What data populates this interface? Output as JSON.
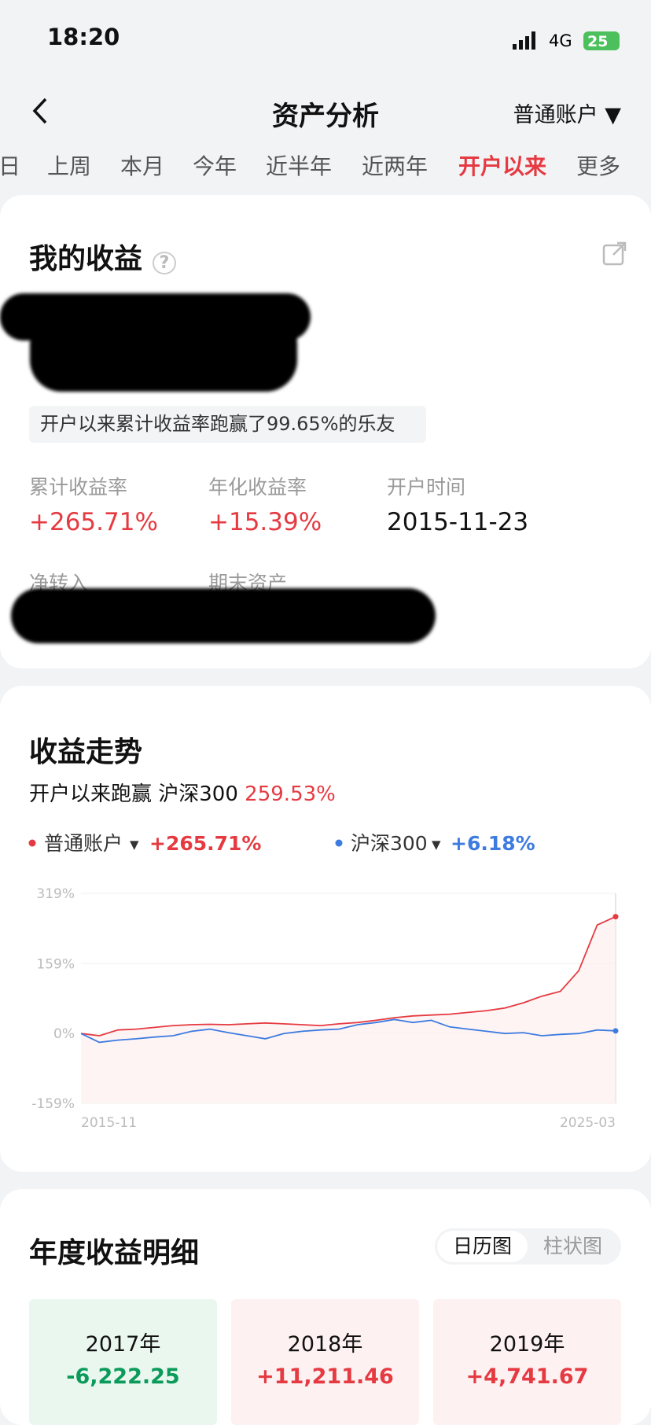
{
  "status": {
    "time": "18:20",
    "network": "4G",
    "battery": "25"
  },
  "header": {
    "title": "资产分析",
    "account": "普通账户"
  },
  "tabs": {
    "items": [
      "日",
      "上周",
      "本月",
      "今年",
      "近半年",
      "近两年",
      "开户以来",
      "更多"
    ],
    "active": 6
  },
  "earnings": {
    "title": "我的收益",
    "beat_text": "开户以来累计收益率跑赢了99.65%的乐友",
    "stats": [
      {
        "label": "累计收益率",
        "value": "+265.71%"
      },
      {
        "label": "年化收益率",
        "value": "+15.39%"
      },
      {
        "label": "开户时间",
        "value": "2015-11-23"
      }
    ],
    "more_labels": [
      "净转入",
      "期末资产"
    ]
  },
  "trend": {
    "title": "收益走势",
    "compare_label": "开户以来跑赢 沪深300",
    "compare_value": "259.53%",
    "series_returns": [
      "+265.71%",
      "+6.18%"
    ],
    "chart_data": {
      "type": "line",
      "categories": [
        "2015-11",
        null,
        null,
        null,
        null,
        null,
        null,
        null,
        null,
        null,
        null,
        null,
        null,
        null,
        null,
        null,
        null,
        null,
        null,
        null,
        null,
        null,
        null,
        null,
        null,
        null,
        null,
        null,
        null,
        "2025-03"
      ],
      "series": [
        {
          "name": "普通账户",
          "color": "#e53a41",
          "values": [
            0,
            -5,
            8,
            10,
            14,
            18,
            20,
            21,
            20,
            22,
            24,
            22,
            20,
            18,
            22,
            25,
            30,
            36,
            40,
            42,
            44,
            48,
            52,
            58,
            70,
            85,
            96,
            143,
            247,
            266
          ]
        },
        {
          "name": "沪深300",
          "color": "#3d7be0",
          "values": [
            0,
            -20,
            -15,
            -12,
            -8,
            -5,
            5,
            10,
            2,
            -5,
            -12,
            0,
            5,
            8,
            10,
            20,
            25,
            32,
            25,
            30,
            15,
            10,
            5,
            0,
            2,
            -5,
            -2,
            0,
            8,
            6
          ]
        }
      ],
      "ylim": [
        -159,
        319
      ],
      "yticks": [
        {
          "value": -159,
          "label": "-159%"
        },
        {
          "value": 0,
          "label": "0%"
        },
        {
          "value": 159,
          "label": "159%"
        },
        {
          "value": 319,
          "label": "319%"
        }
      ],
      "grid": true
    }
  },
  "yearly": {
    "title": "年度收益明细",
    "toggle": [
      "日历图",
      "柱状图"
    ],
    "toggle_active": 0,
    "items": [
      {
        "year": "2017年",
        "amount": "-6,222.25",
        "color": "#0a9b5a",
        "bg": "#eaf7ef"
      },
      {
        "year": "2018年",
        "amount": "+11,211.46",
        "color": "#e53a41",
        "bg": "#fdf1f1"
      },
      {
        "year": "2019年",
        "amount": "+4,741.67",
        "color": "#e53a41",
        "bg": "#fdf1f1"
      }
    ]
  }
}
